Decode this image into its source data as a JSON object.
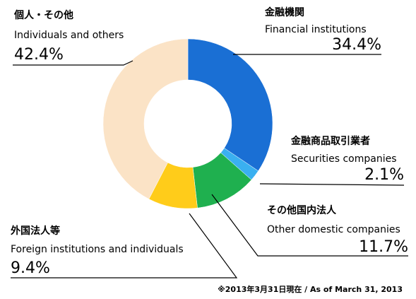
{
  "chart_data": {
    "type": "donut",
    "labels_ja": [
      "金融機関",
      "金融商品取引業者",
      "その他国内法人",
      "外国法人等",
      "個人・その他"
    ],
    "labels_en": [
      "Financial institutions",
      "Securities companies",
      "Other domestic companies",
      "Foreign institutions and individuals",
      "Individuals and others"
    ],
    "values": [
      34.4,
      2.1,
      11.7,
      9.4,
      42.4
    ],
    "value_labels": [
      "34.4%",
      "2.1%",
      "11.7%",
      "9.4%",
      "42.4%"
    ],
    "colors": [
      "#1a6fd4",
      "#3ab0f0",
      "#1fb04f",
      "#ffcc1a",
      "#fbe3c6"
    ],
    "footnote": "※2013年3月31日現在 / As of March 31, 2013"
  }
}
